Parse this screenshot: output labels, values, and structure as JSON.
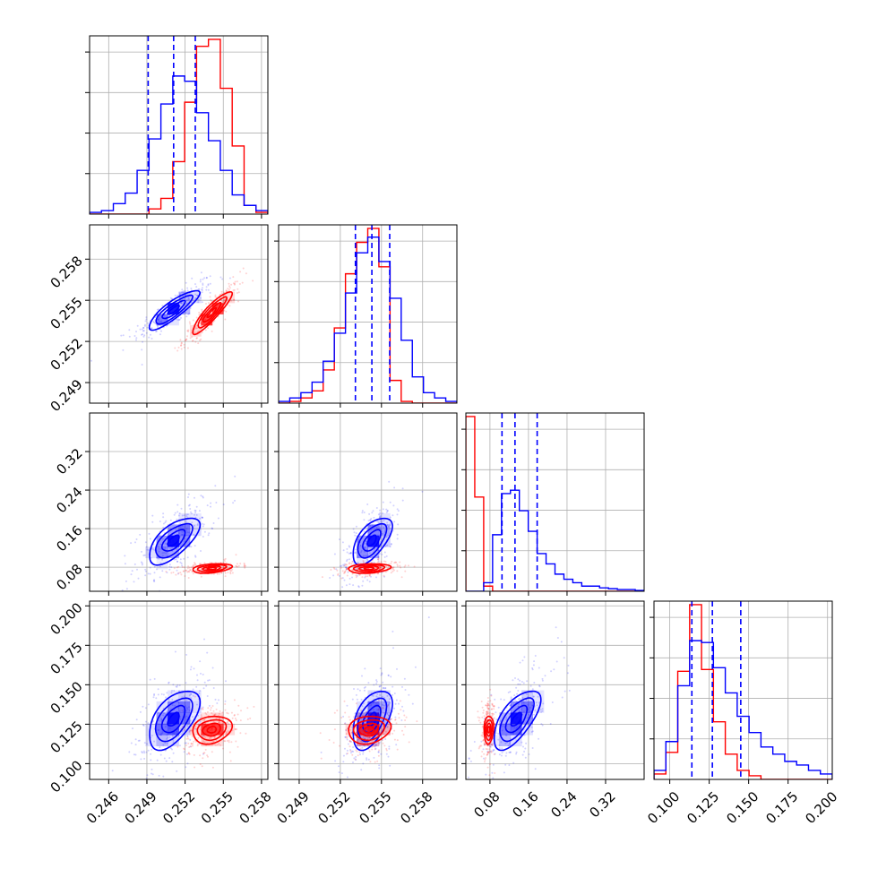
{
  "chart_data": {
    "type": "corner",
    "colors": {
      "blue": "#0000ff",
      "red": "#ff0000",
      "grid": "#b0b0b0"
    },
    "parameters": [
      {
        "index": 0,
        "range": [
          0.2445,
          0.2585
        ],
        "ticks": [
          "0.246",
          "0.249",
          "0.252",
          "0.255",
          "0.258"
        ],
        "tick_values": [
          0.246,
          0.249,
          0.252,
          0.255,
          0.258
        ]
      },
      {
        "index": 1,
        "range": [
          0.2475,
          0.2605
        ],
        "ticks": [
          "0.249",
          "0.252",
          "0.255",
          "0.258"
        ],
        "tick_values": [
          0.249,
          0.252,
          0.255,
          0.258
        ]
      },
      {
        "index": 2,
        "range": [
          0.03,
          0.4
        ],
        "ticks": [
          "0.08",
          "0.16",
          "0.24",
          "0.32"
        ],
        "tick_values": [
          0.08,
          0.16,
          0.24,
          0.32
        ]
      },
      {
        "index": 3,
        "range": [
          0.09,
          0.203
        ],
        "ticks": [
          "0.100",
          "0.125",
          "0.150",
          "0.175",
          "0.200"
        ],
        "tick_values": [
          0.1,
          0.125,
          0.15,
          0.175,
          0.2
        ]
      }
    ],
    "blue": {
      "mean": [
        0.2511,
        0.2543,
        0.135,
        0.128
      ],
      "quantiles": [
        [
          0.2491,
          0.2511,
          0.2528
        ],
        [
          0.2531,
          0.2543,
          0.2556
        ],
        [
          0.105,
          0.132,
          0.178
        ],
        [
          0.114,
          0.127,
          0.145
        ]
      ],
      "hist": [
        [
          0.01,
          0.02,
          0.06,
          0.12,
          0.25,
          0.43,
          0.63,
          0.79,
          0.76,
          0.58,
          0.42,
          0.25,
          0.11,
          0.05,
          0.02
        ],
        [
          0.01,
          0.03,
          0.06,
          0.12,
          0.24,
          0.4,
          0.63,
          0.86,
          0.95,
          0.81,
          0.6,
          0.36,
          0.15,
          0.06,
          0.03,
          0.01
        ],
        [
          0.0,
          0.0,
          0.05,
          0.33,
          0.57,
          0.59,
          0.47,
          0.35,
          0.22,
          0.16,
          0.1,
          0.07,
          0.05,
          0.03,
          0.03,
          0.02,
          0.015,
          0.01,
          0.01,
          0.005
        ],
        [
          0.05,
          0.21,
          0.52,
          0.77,
          0.76,
          0.62,
          0.48,
          0.35,
          0.26,
          0.18,
          0.14,
          0.1,
          0.08,
          0.05,
          0.03
        ]
      ]
    },
    "red": {
      "mean": [
        0.2541,
        0.2541,
        0.0775,
        0.1215
      ],
      "hist": [
        [
          0.0,
          0.0,
          0.0,
          0.0,
          0.0,
          0.03,
          0.09,
          0.3,
          0.64,
          0.96,
          1.0,
          0.72,
          0.39,
          0.05,
          0.01
        ],
        [
          0.0,
          0.01,
          0.03,
          0.07,
          0.19,
          0.43,
          0.74,
          0.92,
          1.0,
          0.78,
          0.13,
          0.01,
          0.0,
          0.0,
          0.0,
          0.0
        ],
        [
          1.02,
          0.55,
          0.03,
          0.0,
          0.0,
          0.0,
          0.0,
          0.0,
          0.0,
          0.0,
          0.0,
          0.0,
          0.0,
          0.0,
          0.0,
          0.0,
          0.0,
          0.0,
          0.0,
          0.0
        ],
        [
          0.03,
          0.15,
          0.6,
          0.97,
          0.61,
          0.32,
          0.14,
          0.05,
          0.02,
          0.0,
          0.0,
          0.0,
          0.0,
          0.0,
          0.0
        ]
      ]
    },
    "pairs": [
      {
        "row": 1,
        "col": 0,
        "blue": {
          "mean": [
            0.2511,
            0.2543
          ],
          "sd": [
            0.0016,
            0.00115
          ],
          "rho": 0.86,
          "scale": [
            0.0009,
            0.00065
          ]
        },
        "red": {
          "mean": [
            0.2541,
            0.2541
          ],
          "sd": [
            0.00115,
            0.00115
          ],
          "rho": 0.9,
          "scale": [
            0.0007,
            0.0007
          ]
        }
      },
      {
        "row": 2,
        "col": 0,
        "blue": {
          "mean": [
            0.2511,
            0.135
          ],
          "sd": [
            0.0016,
            0.045
          ],
          "rho": 0.65,
          "scale": [
            0.0009,
            0.022
          ]
        },
        "red": {
          "mean": [
            0.2541,
            0.0775
          ],
          "sd": [
            0.00115,
            0.0075
          ],
          "rho": 0.35,
          "scale": [
            0.0007,
            0.0045
          ]
        }
      },
      {
        "row": 2,
        "col": 1,
        "blue": {
          "mean": [
            0.2543,
            0.135
          ],
          "sd": [
            0.00115,
            0.045
          ],
          "rho": 0.6,
          "scale": [
            0.00065,
            0.022
          ]
        },
        "red": {
          "mean": [
            0.2541,
            0.0775
          ],
          "sd": [
            0.00115,
            0.0075
          ],
          "rho": 0.2,
          "scale": [
            0.0007,
            0.0045
          ]
        }
      },
      {
        "row": 3,
        "col": 0,
        "blue": {
          "mean": [
            0.2511,
            0.128
          ],
          "sd": [
            0.0016,
            0.0175
          ],
          "rho": 0.55,
          "scale": [
            0.0009,
            0.0085
          ]
        },
        "red": {
          "mean": [
            0.2541,
            0.1215
          ],
          "sd": [
            0.00115,
            0.0085
          ],
          "rho": 0.2,
          "scale": [
            0.0007,
            0.004
          ]
        }
      },
      {
        "row": 3,
        "col": 1,
        "blue": {
          "mean": [
            0.2543,
            0.128
          ],
          "sd": [
            0.00115,
            0.0175
          ],
          "rho": 0.5,
          "scale": [
            0.00065,
            0.0085
          ]
        },
        "red": {
          "mean": [
            0.2541,
            0.1215
          ],
          "sd": [
            0.00115,
            0.0085
          ],
          "rho": 0.15,
          "scale": [
            0.0007,
            0.004
          ]
        }
      },
      {
        "row": 3,
        "col": 2,
        "blue": {
          "mean": [
            0.135,
            0.128
          ],
          "sd": [
            0.045,
            0.0175
          ],
          "rho": 0.65,
          "scale": [
            0.022,
            0.0085
          ]
        },
        "red": {
          "mean": [
            0.0775,
            0.1215
          ],
          "sd": [
            0.0075,
            0.0085
          ],
          "rho": 0.1,
          "scale": [
            0.0045,
            0.004
          ]
        }
      }
    ]
  }
}
